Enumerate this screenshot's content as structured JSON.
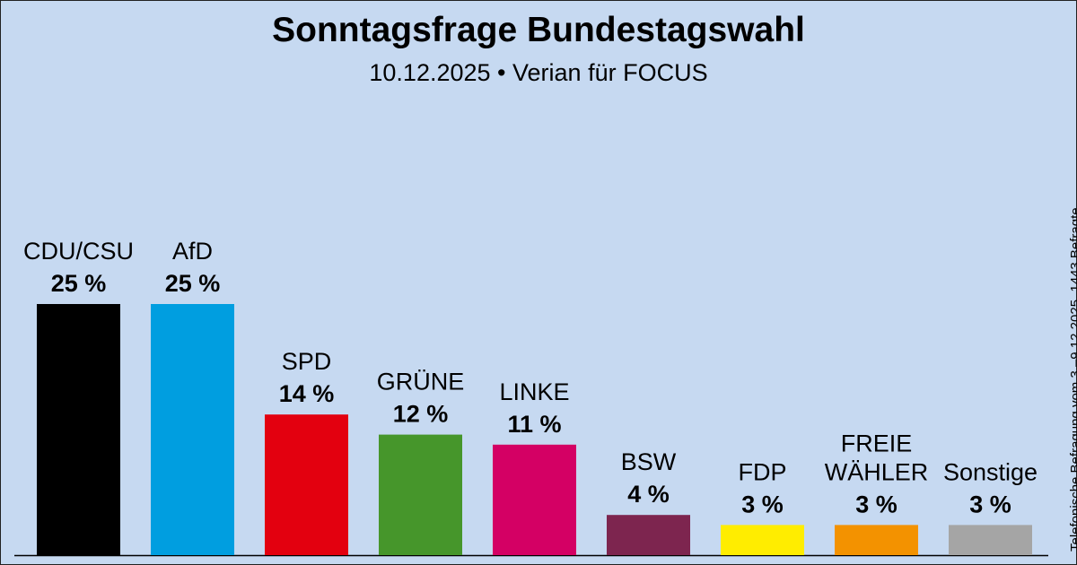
{
  "chart_data": {
    "type": "bar",
    "title": "Sonntagsfrage Bundestagswahl",
    "subtitle_date": "10.12.2025",
    "subtitle_separator": "•",
    "subtitle_source": "Verian für FOCUS",
    "note": "Telefonische Befragung vom 3.–9.12.2025, 1443 Befragte",
    "unit": "%",
    "ylim": [
      0,
      25
    ],
    "grid": false,
    "categories": [
      "CDU/CSU",
      "AfD",
      "SPD",
      "GRÜNE",
      "LINKE",
      "BSW",
      "FDP",
      "FREIE WÄHLER",
      "Sonstige"
    ],
    "label_lines": [
      [
        "CDU/CSU"
      ],
      [
        "AfD"
      ],
      [
        "SPD"
      ],
      [
        "GRÜNE"
      ],
      [
        "LINKE"
      ],
      [
        "BSW"
      ],
      [
        "FDP"
      ],
      [
        "FREIE",
        "WÄHLER"
      ],
      [
        "Sonstige"
      ]
    ],
    "values": [
      25,
      25,
      14,
      12,
      11,
      4,
      3,
      3,
      3
    ],
    "value_labels": [
      "25 %",
      "25 %",
      "14 %",
      "12 %",
      "11 %",
      "4 %",
      "3 %",
      "3 %",
      "3 %"
    ],
    "colors": [
      "#000000",
      "#009ee0",
      "#e3000f",
      "#46962b",
      "#d40064",
      "#7d254f",
      "#ffed00",
      "#f39200",
      "#a5a5a5"
    ]
  }
}
